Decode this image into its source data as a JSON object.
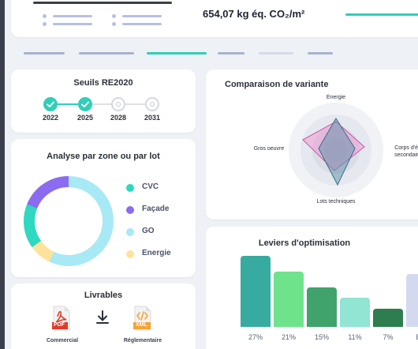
{
  "header": {
    "emissions_value": "654,07 kg éq. CO₂/m²"
  },
  "colors": {
    "accent": "#2fcfb8",
    "purple": "#8b6cf0",
    "sky": "#a7e9f5",
    "yellow": "#ffe39a",
    "dark": "#2b2f3a"
  },
  "thresholds": {
    "title": "Seuils RE2020",
    "steps": [
      {
        "year": "2022",
        "done": true
      },
      {
        "year": "2025",
        "done": true
      },
      {
        "year": "2028",
        "done": false
      },
      {
        "year": "2031",
        "done": false
      }
    ]
  },
  "zones": {
    "title": "Analyse par zone ou par lot",
    "legend": [
      {
        "label": "CVC",
        "color": "#2fd8c0"
      },
      {
        "label": "Façade",
        "color": "#8b6cf0"
      },
      {
        "label": "GO",
        "color": "#a7e9f5"
      },
      {
        "label": "Energie",
        "color": "#ffe39a"
      }
    ]
  },
  "deliverables": {
    "title": "Livrables",
    "items": [
      {
        "icon": "pdf-file-icon",
        "badge": "PDF",
        "label": "Commercial"
      },
      {
        "icon": "xml-file-icon",
        "badge": "XML",
        "label": "Réglementaire"
      }
    ]
  },
  "variants": {
    "title": "Comparaison de variante",
    "axes": [
      "Energie",
      "Corps d'état secondaires",
      "Lots techniques",
      "Gros oeuvre"
    ]
  },
  "levers": {
    "title": "Leviers d'optimisation"
  },
  "chart_data": {
    "type": "bar",
    "categories": [
      "27%",
      "21%",
      "15%",
      "11%",
      "7%",
      "Etc"
    ],
    "values": [
      27,
      21,
      15,
      11,
      7,
      20
    ],
    "colors": [
      "#38aba0",
      "#6ee38c",
      "#3fa36b",
      "#92e4d3",
      "#2e7d4f",
      "#d3daf0"
    ]
  }
}
